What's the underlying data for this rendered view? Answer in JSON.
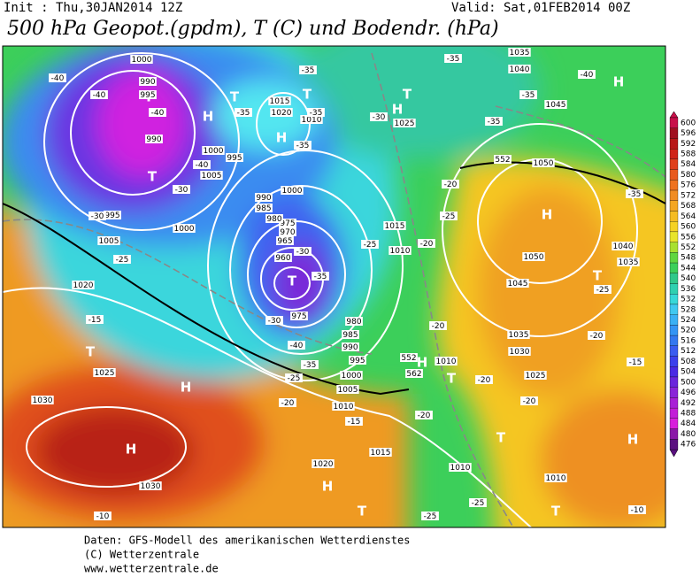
{
  "header": {
    "init": "Init : Thu,30JAN2014 12Z",
    "valid": "Valid: Sat,01FEB2014 00Z",
    "title": "500 hPa Geopot.(gpdm), T (C) und Bodendr. (hPa)"
  },
  "footer": [
    "Daten: GFS-Modell des amerikanischen Wetterdienstes",
    "(C) Wetterzentrale",
    "www.wetterzentrale.de"
  ],
  "colorbar": [
    "600",
    "596",
    "592",
    "588",
    "584",
    "580",
    "576",
    "572",
    "568",
    "564",
    "560",
    "556",
    "552",
    "548",
    "544",
    "540",
    "536",
    "532",
    "528",
    "524",
    "520",
    "516",
    "512",
    "508",
    "504",
    "500",
    "496",
    "492",
    "488",
    "484",
    "480",
    "476"
  ],
  "map_labels": {
    "pressure_centers": [
      "H",
      "H",
      "H",
      "H",
      "H",
      "H",
      "H",
      "H",
      "H",
      "H",
      "T",
      "T",
      "T",
      "T",
      "T",
      "T",
      "T",
      "T",
      "T",
      "T",
      "T",
      "T"
    ],
    "isobars": [
      "1030",
      "1030",
      "1025",
      "1020",
      "1005",
      "995",
      "1000",
      "1005",
      "1000",
      "990",
      "995",
      "990",
      "1000",
      "1015",
      "1020",
      "1010",
      "1025",
      "1035",
      "1040",
      "1045",
      "1050",
      "1050",
      "1045",
      "1040",
      "1035",
      "1035",
      "1030",
      "1025",
      "1015",
      "1010",
      "980",
      "985",
      "990",
      "995",
      "1000",
      "1005",
      "1010",
      "1015",
      "1020",
      "1010",
      "1010",
      "1010",
      "960",
      "975",
      "965",
      "970",
      "975",
      "980",
      "985",
      "990",
      "1000",
      "995",
      "552",
      "552",
      "562"
    ],
    "temperatures": [
      "-40",
      "-40",
      "-40",
      "-40",
      "-35",
      "-35",
      "-35",
      "-35",
      "-35",
      "-35",
      "-40",
      "-35",
      "-30",
      "-30",
      "-30",
      "-25",
      "-15",
      "-30",
      "-35",
      "-30",
      "-40",
      "-35",
      "-25",
      "-20",
      "-15",
      "-20",
      "-25",
      "-20",
      "-25",
      "-20",
      "-20",
      "-25",
      "-20",
      "-15",
      "-20",
      "-25",
      "-25",
      "-10",
      "-10",
      "-20",
      "-35"
    ]
  }
}
